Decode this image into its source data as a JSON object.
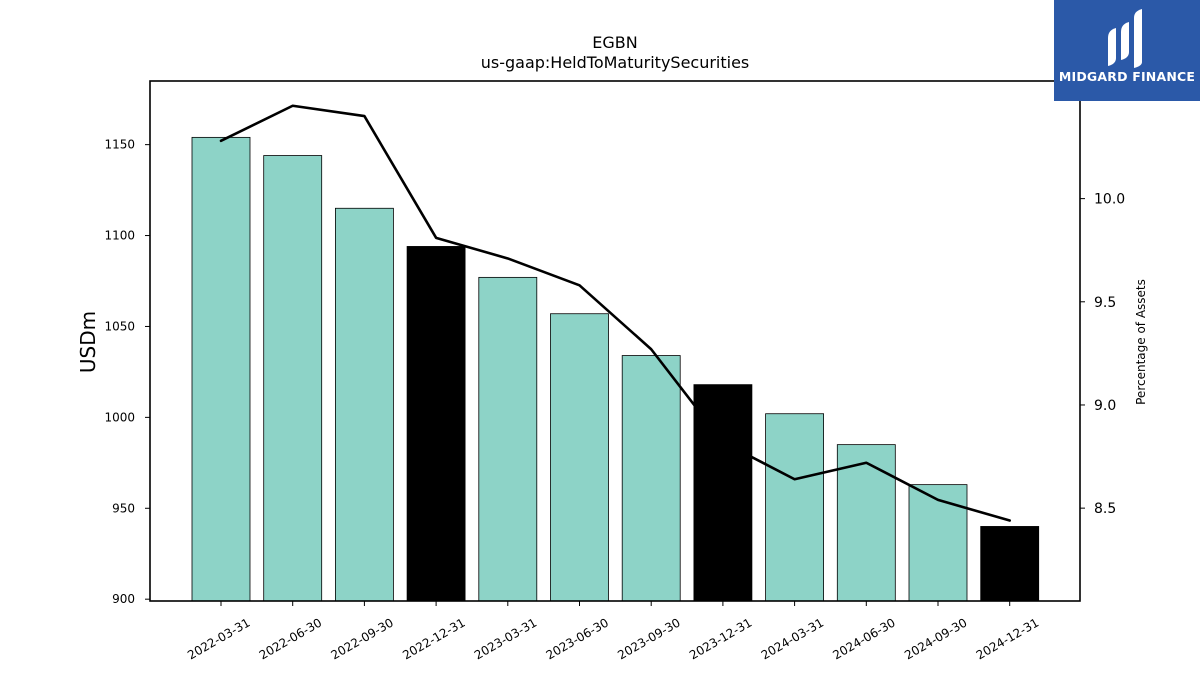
{
  "brand": {
    "name": "MIDGARD FINANCE",
    "bg_color": "#2b59a8"
  },
  "chart_data": {
    "type": "bar",
    "title": "EGBN",
    "subtitle": "us-gaap:HeldToMaturitySecurities",
    "ylabel": "USDm",
    "y2label": "Percentage of Assets",
    "categories": [
      "2022-03-31",
      "2022-06-30",
      "2022-09-30",
      "2022-12-31",
      "2023-03-31",
      "2023-06-30",
      "2023-09-30",
      "2023-12-31",
      "2024-03-31",
      "2024-06-30",
      "2024-09-30",
      "2024-12-31"
    ],
    "series": [
      {
        "kind": "bar",
        "values": [
          1154,
          1144,
          1115,
          1094,
          1077,
          1057,
          1034,
          1018,
          1002,
          985,
          963,
          940
        ]
      },
      {
        "kind": "line",
        "axis": "right",
        "values": [
          10.28,
          10.45,
          10.4,
          9.81,
          9.71,
          9.58,
          9.27,
          8.82,
          8.64,
          8.72,
          8.54,
          8.44
        ]
      }
    ],
    "highlight_categories": [
      "2022-12-31",
      "2023-12-31",
      "2024-12-31"
    ],
    "bar_color": "#8dd3c7",
    "highlight_color": "#000000",
    "line_color": "#000000",
    "ylim": [
      899,
      1185
    ],
    "y2lim": [
      8.05,
      10.57
    ],
    "yticks": [
      900,
      950,
      1000,
      1050,
      1100,
      1150
    ],
    "y2ticks": [
      "8.5",
      "9.0",
      "9.5",
      "10.0"
    ],
    "grid": false
  }
}
